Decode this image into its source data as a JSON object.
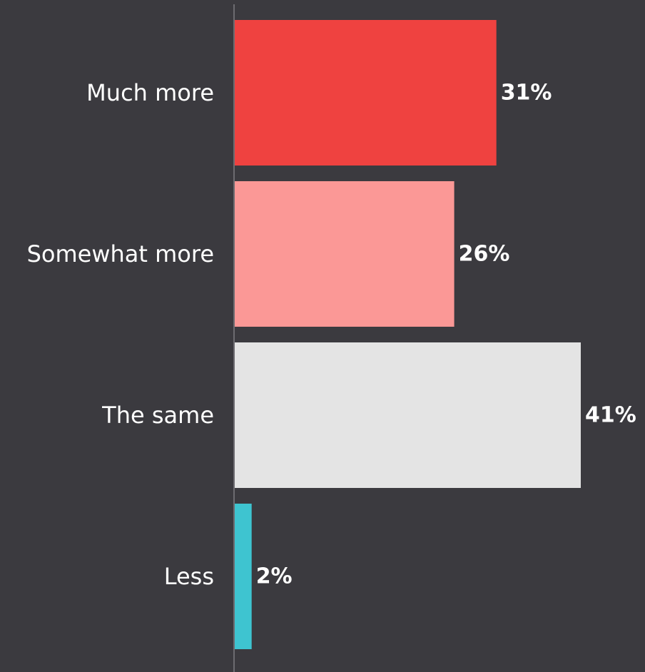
{
  "chart_data": {
    "type": "bar",
    "orientation": "horizontal",
    "categories": [
      "Much more",
      "Somewhat more",
      "The same",
      "Less"
    ],
    "values": [
      31,
      26,
      41,
      2
    ],
    "value_labels": [
      "31%",
      "26%",
      "41%",
      "2%"
    ],
    "colors": [
      "#ef4240",
      "#fb9896",
      "#e4e4e4",
      "#3ec4d0"
    ],
    "xlim": [
      0,
      41
    ],
    "grid": false,
    "legend": "none"
  },
  "colors": {
    "background": "#3b3a3f",
    "axis": "#6d6c71",
    "text": "#ffffff"
  }
}
